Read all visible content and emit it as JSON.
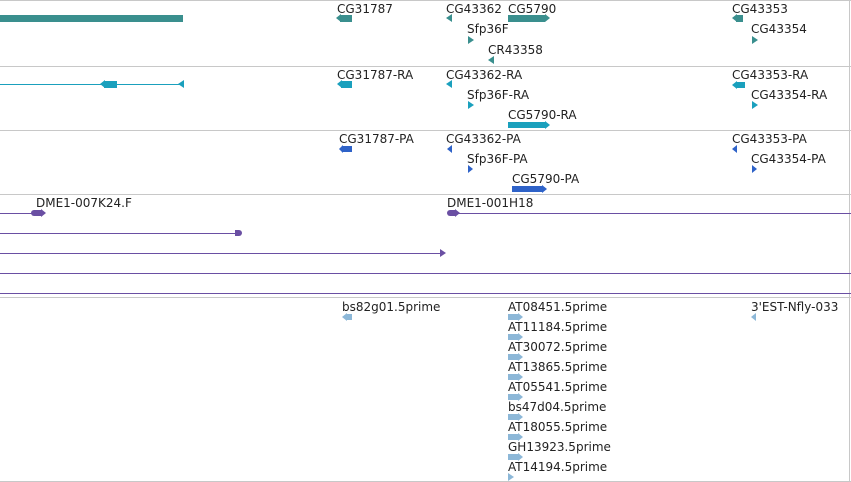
{
  "colors": {
    "gene": "#3a8f8e",
    "transcript": "#1aa0bd",
    "protein": "#2e62c8",
    "clone": "#6a4fa3",
    "est": "#8db8d8",
    "separator": "#c8c8c8"
  },
  "genes": {
    "cg31787": "CG31787",
    "cg43362": "CG43362",
    "cg5790": "CG5790",
    "sfp36f": "Sfp36F",
    "cr43358": "CR43358",
    "cg43353": "CG43353",
    "cg43354": "CG43354"
  },
  "transcripts": {
    "cg31787_ra": "CG31787-RA",
    "cg43362_ra": "CG43362-RA",
    "sfp36f_ra": "Sfp36F-RA",
    "cg5790_ra": "CG5790-RA",
    "cg43353_ra": "CG43353-RA",
    "cg43354_ra": "CG43354-RA"
  },
  "proteins": {
    "cg31787_pa": "CG31787-PA",
    "cg43362_pa": "CG43362-PA",
    "sfp36f_pa": "Sfp36F-PA",
    "cg5790_pa": "CG5790-PA",
    "cg43353_pa": "CG43353-PA",
    "cg43354_pa": "CG43354-PA"
  },
  "clones": {
    "dme1_007k24": "DME1-007K24.F",
    "dme1_001h18": "DME1-001H18"
  },
  "ests": {
    "bs82g01": "bs82g01.5prime",
    "est_nfly": "3'EST-Nfly-033",
    "at08451": "AT08451.5prime",
    "at11184": "AT11184.5prime",
    "at30072": "AT30072.5prime",
    "at13865": "AT13865.5prime",
    "at05541": "AT05541.5prime",
    "bs47d04": "bs47d04.5prime",
    "at18055": "AT18055.5prime",
    "gh13923": "GH13923.5prime",
    "at14194": "AT14194.5prime"
  }
}
